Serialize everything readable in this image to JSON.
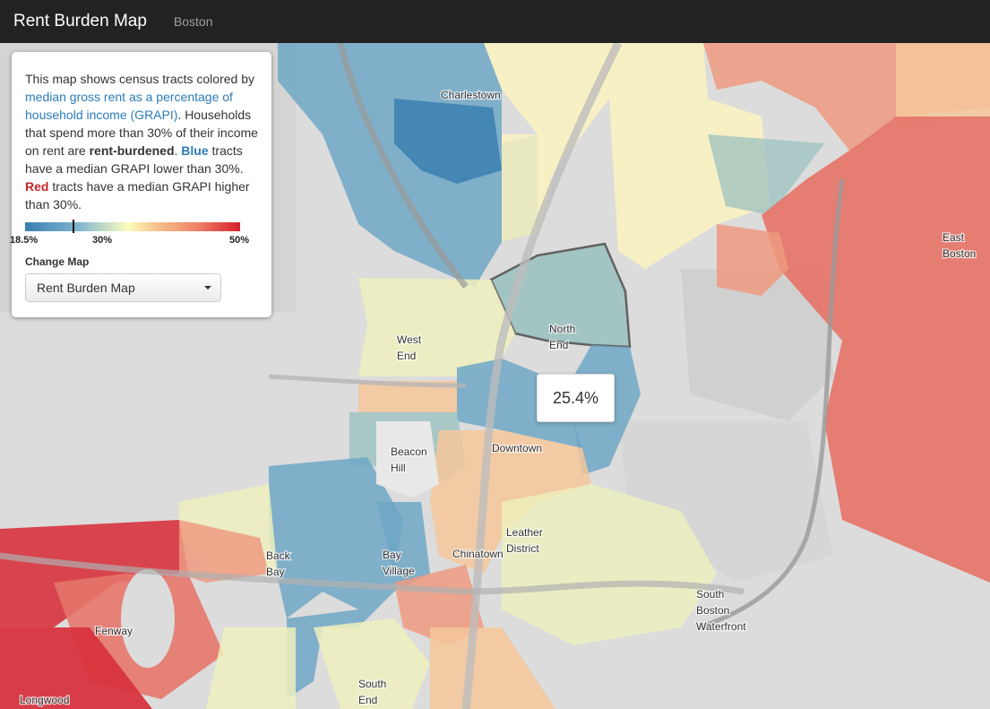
{
  "navbar": {
    "brand": "Rent Burden Map",
    "city": "Boston"
  },
  "info": {
    "desc_intro": "This map shows census tracts colored by ",
    "desc_link": "median gross rent as a percentage of household income (GRAPI)",
    "desc_mid": ". Households that spend more than 30% of their income on rent are ",
    "desc_burdened": "rent-burdened",
    "desc_period": ". ",
    "desc_blue": "Blue",
    "desc_blue_rest": " tracts have a median GRAPI lower than 30%. ",
    "desc_red": "Red",
    "desc_red_rest": " tracts have a median GRAPI higher than 30%."
  },
  "legend": {
    "min": "18.5%",
    "mid": "30%",
    "max": "50%",
    "marker_value_pct": 25.4
  },
  "change_map": {
    "label": "Change Map",
    "selected": "Rent Burden Map"
  },
  "tooltip": {
    "value": "25.4%"
  },
  "colors": {
    "blue_dark": "#3a7fb0",
    "blue_mid": "#6fa7c5",
    "teal": "#9cc2c0",
    "yellow": "#fbf3bf",
    "pale": "#eef0bd",
    "orange": "#f6c79a",
    "salmon": "#ee9a80",
    "red": "#e5776b",
    "red_dark": "#d7333d"
  },
  "places": {
    "charlestown": "Charlestown",
    "east_boston_1": "East",
    "east_boston_2": "Boston",
    "north_end_1": "North",
    "north_end_2": "End",
    "west_end_1": "West",
    "west_end_2": "End",
    "downtown": "Downtown",
    "beacon_hill_1": "Beacon",
    "beacon_hill_2": "Hill",
    "leather_1": "Leather",
    "leather_2": "District",
    "chinatown": "Chinatown",
    "back_bay_1": "Back",
    "back_bay_2": "Bay",
    "bay_village_1": "Bay",
    "bay_village_2": "Village",
    "fenway": "Fenway",
    "sbw_1": "South",
    "sbw_2": "Boston",
    "sbw_3": "Waterfront",
    "south_end_1": "South",
    "south_end_2": "End",
    "longwood": "Longwood"
  }
}
